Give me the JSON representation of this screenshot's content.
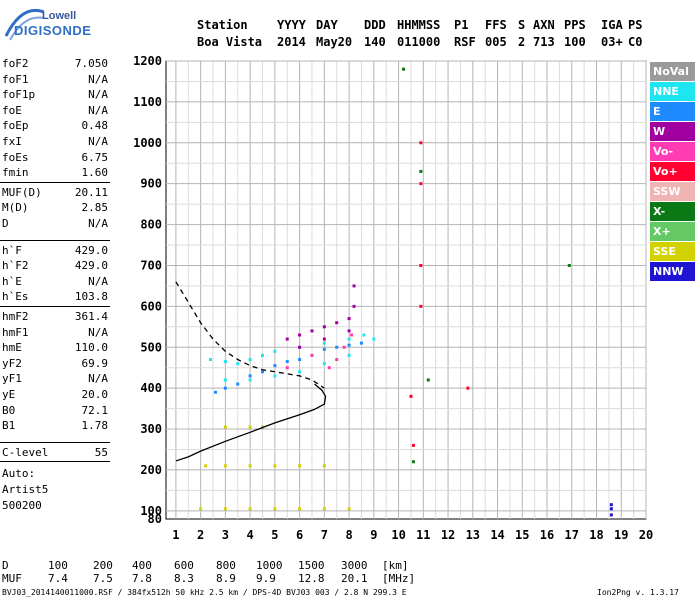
{
  "logo": {
    "line1": "Lowell",
    "line2": "DIGISONDE"
  },
  "header": {
    "row1": [
      "Station",
      "YYYY",
      "DAY",
      "DDD",
      "HHMMSS",
      "P1",
      "FFS",
      "S",
      "AXN",
      "PPS",
      "IGA",
      "PS"
    ],
    "row2": [
      "Boa Vista",
      "2014",
      "May20",
      "140",
      "011000",
      "RSF",
      "005",
      "2",
      "713",
      "100",
      "03+",
      "C0"
    ]
  },
  "params_group1": [
    {
      "name": "foF2",
      "value": "7.050"
    },
    {
      "name": "foF1",
      "value": "N/A"
    },
    {
      "name": "foF1p",
      "value": "N/A"
    },
    {
      "name": "foE",
      "value": "N/A"
    },
    {
      "name": "foEp",
      "value": "0.48"
    },
    {
      "name": "fxI",
      "value": "N/A"
    },
    {
      "name": "foEs",
      "value": "6.75"
    },
    {
      "name": "fmin",
      "value": "1.60"
    }
  ],
  "params_group2": [
    {
      "name": "MUF(D)",
      "value": "20.11"
    },
    {
      "name": "M(D)",
      "value": "2.85"
    },
    {
      "name": "D",
      "value": "N/A"
    }
  ],
  "params_group3": [
    {
      "name": "h`F",
      "value": "429.0"
    },
    {
      "name": "h`F2",
      "value": "429.0"
    },
    {
      "name": "h`E",
      "value": "N/A"
    },
    {
      "name": "h`Es",
      "value": "103.8"
    }
  ],
  "params_group4": [
    {
      "name": "hmF2",
      "value": "361.4"
    },
    {
      "name": "hmF1",
      "value": "N/A"
    },
    {
      "name": "hmE",
      "value": "110.0"
    },
    {
      "name": "yF2",
      "value": "69.9"
    },
    {
      "name": "yF1",
      "value": "N/A"
    },
    {
      "name": "yE",
      "value": "20.0"
    },
    {
      "name": "B0",
      "value": "72.1"
    },
    {
      "name": "B1",
      "value": "1.78"
    }
  ],
  "clevel": {
    "name": "C-level",
    "value": "55"
  },
  "autoscale": {
    "line1": "Auto:",
    "line2": "Artist5",
    "line3": "500200"
  },
  "legend": [
    {
      "label": "NoVal",
      "color": "#9a9a9a"
    },
    {
      "label": "NNE",
      "color": "#1ee6f0"
    },
    {
      "label": "E",
      "color": "#1e8cff"
    },
    {
      "label": "W",
      "color": "#a000a0"
    },
    {
      "label": "Vo-",
      "color": "#ff3cb4"
    },
    {
      "label": "Vo+",
      "color": "#ff0030"
    },
    {
      "label": "SSW",
      "color": "#f0b4b4"
    },
    {
      "label": "X-",
      "color": "#0a7814"
    },
    {
      "label": "X+",
      "color": "#64c864"
    },
    {
      "label": "SSE",
      "color": "#d2d200"
    },
    {
      "label": "NNW",
      "color": "#1e14d2"
    }
  ],
  "chart_data": {
    "type": "scatter",
    "title": "",
    "xlabel": "",
    "ylabel": "",
    "xlim": [
      1,
      20
    ],
    "ylim": [
      80,
      1200
    ],
    "x_ticks": [
      1,
      2,
      3,
      4,
      5,
      6,
      7,
      8,
      9,
      10,
      11,
      12,
      13,
      14,
      15,
      16,
      17,
      18,
      19,
      20
    ],
    "y_ticks": [
      80,
      100,
      200,
      300,
      400,
      500,
      600,
      700,
      800,
      900,
      1000,
      1100,
      1200
    ],
    "grid": true,
    "legend_position": "right",
    "series": [
      {
        "name": "E",
        "color": "#1e8cff",
        "points": [
          [
            2.6,
            390
          ],
          [
            3.0,
            400
          ],
          [
            3.5,
            410
          ],
          [
            4.0,
            430
          ],
          [
            4.5,
            440
          ],
          [
            5.0,
            455
          ],
          [
            5.5,
            465
          ],
          [
            6.0,
            470
          ],
          [
            6.5,
            480
          ],
          [
            7.0,
            495
          ],
          [
            7.5,
            500
          ],
          [
            8.0,
            505
          ],
          [
            8.5,
            510
          ]
        ]
      },
      {
        "name": "NNE",
        "color": "#1ee6f0",
        "points": [
          [
            2.4,
            470
          ],
          [
            3.0,
            465
          ],
          [
            3.5,
            460
          ],
          [
            4.0,
            470
          ],
          [
            4.5,
            480
          ],
          [
            5.0,
            490
          ],
          [
            6.0,
            500
          ],
          [
            7.0,
            510
          ],
          [
            8.0,
            520
          ],
          [
            8.6,
            530
          ],
          [
            9.0,
            520
          ],
          [
            3.0,
            420
          ],
          [
            4.0,
            420
          ],
          [
            5.0,
            430
          ],
          [
            6.0,
            440
          ],
          [
            7.0,
            460
          ],
          [
            8.0,
            480
          ]
        ]
      },
      {
        "name": "W",
        "color": "#a000a0",
        "points": [
          [
            5.5,
            520
          ],
          [
            6.0,
            530
          ],
          [
            6.5,
            540
          ],
          [
            7.0,
            550
          ],
          [
            7.5,
            560
          ],
          [
            8.0,
            570
          ],
          [
            6.0,
            500
          ],
          [
            7.0,
            520
          ],
          [
            8.0,
            540
          ],
          [
            8.2,
            600
          ],
          [
            8.2,
            650
          ]
        ]
      },
      {
        "name": "Vo-",
        "color": "#ff3cb4",
        "points": [
          [
            7.2,
            450
          ],
          [
            7.5,
            470
          ],
          [
            7.8,
            500
          ],
          [
            8.1,
            530
          ],
          [
            5.5,
            450
          ],
          [
            6.5,
            480
          ]
        ]
      },
      {
        "name": "Vo+",
        "color": "#ff0030",
        "points": [
          [
            10.9,
            1000
          ],
          [
            10.9,
            900
          ],
          [
            10.9,
            700
          ],
          [
            10.9,
            600
          ],
          [
            10.5,
            380
          ],
          [
            10.6,
            260
          ],
          [
            12.8,
            400
          ]
        ]
      },
      {
        "name": "X-",
        "color": "#0a7814",
        "points": [
          [
            10.9,
            930
          ],
          [
            10.2,
            1180
          ],
          [
            11.2,
            420
          ],
          [
            10.6,
            220
          ],
          [
            16.9,
            700
          ]
        ]
      },
      {
        "name": "Es",
        "color": "#d2d200",
        "points": [
          [
            2.2,
            210
          ],
          [
            3.0,
            210
          ],
          [
            4.0,
            210
          ],
          [
            5.0,
            210
          ],
          [
            6.0,
            210
          ],
          [
            7.0,
            210
          ],
          [
            2.0,
            105
          ],
          [
            3.0,
            105
          ],
          [
            4.0,
            105
          ],
          [
            5.0,
            105
          ],
          [
            6.0,
            105
          ],
          [
            7.0,
            105
          ],
          [
            8.0,
            105
          ],
          [
            3.0,
            305
          ],
          [
            4.0,
            305
          ],
          [
            4.5,
            305
          ]
        ]
      },
      {
        "name": "NNW",
        "color": "#1e14d2",
        "points": [
          [
            18.6,
            105
          ],
          [
            18.6,
            115
          ],
          [
            18.6,
            90
          ]
        ]
      }
    ],
    "profile_dashed": [
      [
        1.0,
        660
      ],
      [
        1.5,
        610
      ],
      [
        2.0,
        560
      ],
      [
        2.5,
        520
      ],
      [
        3.0,
        490
      ],
      [
        3.5,
        470
      ],
      [
        4.0,
        455
      ],
      [
        4.5,
        445
      ],
      [
        5.0,
        440
      ],
      [
        5.5,
        435
      ],
      [
        6.0,
        430
      ],
      [
        6.5,
        420
      ],
      [
        7.0,
        400
      ]
    ],
    "profile_solid": [
      [
        1.0,
        222
      ],
      [
        1.5,
        232
      ],
      [
        2.0,
        246
      ],
      [
        3.0,
        270
      ],
      [
        4.0,
        292
      ],
      [
        5.0,
        315
      ],
      [
        6.0,
        335
      ],
      [
        6.6,
        348
      ],
      [
        7.0,
        361
      ],
      [
        7.05,
        380
      ],
      [
        6.9,
        395
      ],
      [
        6.6,
        410
      ]
    ],
    "footer": {
      "d_label": "D",
      "d_values": [
        "100",
        "200",
        "400",
        "600",
        "800",
        "1000",
        "1500",
        "3000",
        "[km]"
      ],
      "muf_label": "MUF",
      "muf_values": [
        "7.4",
        "7.5",
        "7.8",
        "8.3",
        "8.9",
        "9.9",
        "12.8",
        "20.1",
        "[MHz]"
      ],
      "file_info": "BVJ03_2014140011000.RSF / 384fx512h 50 kHz 2.5 km / DPS-4D BVJ03 003 / 2.8 N 299.3 E",
      "version": "Ion2Png v. 1.3.17"
    }
  }
}
